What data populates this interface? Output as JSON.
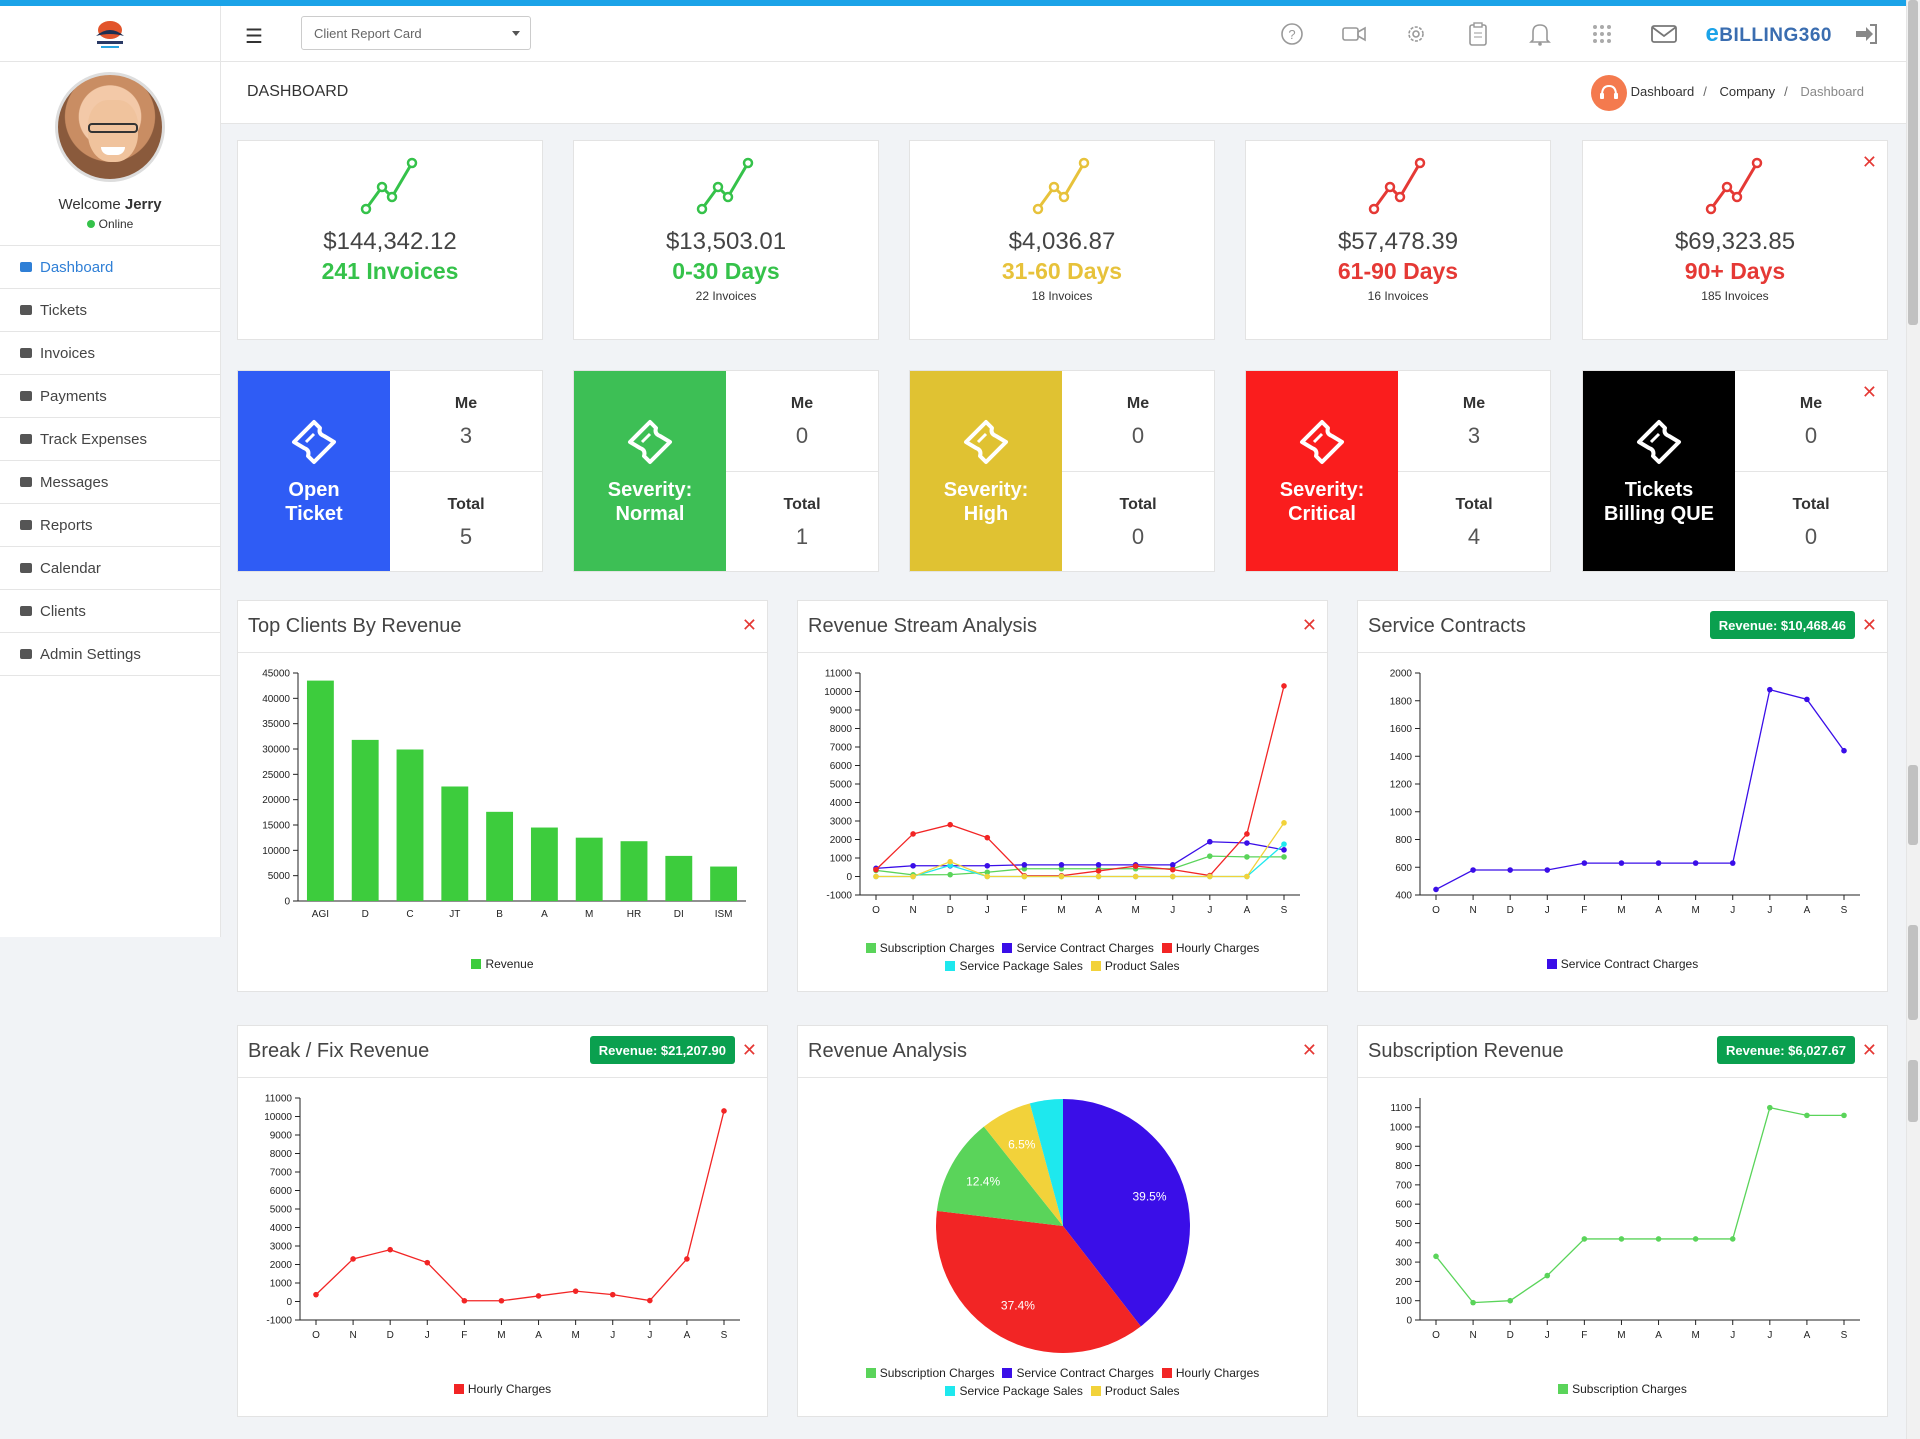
{
  "topbar": {
    "report_select": "Client Report Card",
    "brand_prefix": "e",
    "brand": "BILLING360",
    "icons": [
      "help-icon",
      "video-icon",
      "gear-icon",
      "clipboard-icon",
      "bell-icon",
      "apps-grid-icon",
      "mail-icon",
      "logout-icon"
    ]
  },
  "sidebar": {
    "welcome_prefix": "Welcome",
    "user": "Jerry",
    "status": "Online",
    "items": [
      {
        "label": "Dashboard",
        "icon": "dashboard-icon"
      },
      {
        "label": "Tickets",
        "icon": "ticket-icon"
      },
      {
        "label": "Invoices",
        "icon": "invoice-icon"
      },
      {
        "label": "Payments",
        "icon": "payment-icon"
      },
      {
        "label": "Track Expenses",
        "icon": "money-icon"
      },
      {
        "label": "Messages",
        "icon": "chat-icon"
      },
      {
        "label": "Reports",
        "icon": "book-icon"
      },
      {
        "label": "Calendar",
        "icon": "calendar-icon"
      },
      {
        "label": "Clients",
        "icon": "users-icon"
      },
      {
        "label": "Admin Settings",
        "icon": "cog-icon"
      }
    ]
  },
  "header": {
    "title": "DASHBOARD",
    "breadcrumb": [
      "Dashboard",
      "Company",
      "Dashboard"
    ]
  },
  "stats": [
    {
      "amount": "$144,342.12",
      "label": "241 Invoices",
      "sub": "",
      "color": "#35c24a"
    },
    {
      "amount": "$13,503.01",
      "label": "0-30 Days",
      "sub": "22 Invoices",
      "color": "#35c24a"
    },
    {
      "amount": "$4,036.87",
      "label": "31-60 Days",
      "sub": "18 Invoices",
      "color": "#e7c23b"
    },
    {
      "amount": "$57,478.39",
      "label": "61-90 Days",
      "sub": "16 Invoices",
      "color": "#e53935"
    },
    {
      "amount": "$69,323.85",
      "label": "90+ Days",
      "sub": "185 Invoices",
      "color": "#e53935"
    }
  ],
  "tickets": [
    {
      "label": "Open\nTicket",
      "me_label": "Me",
      "me": "3",
      "total_label": "Total",
      "total": "5",
      "color": "#2f5cf5"
    },
    {
      "label": "Severity:\nNormal",
      "me_label": "Me",
      "me": "0",
      "total_label": "Total",
      "total": "1",
      "color": "#3dbf55"
    },
    {
      "label": "Severity:\nHigh",
      "me_label": "Me",
      "me": "0",
      "total_label": "Total",
      "total": "0",
      "color": "#e0c232"
    },
    {
      "label": "Severity:\nCritical",
      "me_label": "Me",
      "me": "3",
      "total_label": "Total",
      "total": "4",
      "color": "#fa1d1d"
    },
    {
      "label": "Tickets\nBilling QUE",
      "me_label": "Me",
      "me": "0",
      "total_label": "Total",
      "total": "0",
      "color": "#000000"
    }
  ],
  "charts": {
    "top_clients": {
      "title": "Top Clients By Revenue"
    },
    "revenue_stream": {
      "title": "Revenue Stream Analysis"
    },
    "service_contracts": {
      "title": "Service Contracts",
      "badge": "Revenue: $10,468.46"
    },
    "break_fix": {
      "title": "Break / Fix Revenue",
      "badge": "Revenue: $21,207.90"
    },
    "revenue_analysis": {
      "title": "Revenue Analysis"
    },
    "subscription": {
      "title": "Subscription Revenue",
      "badge": "Revenue: $6,027.67"
    }
  },
  "chart_data": [
    {
      "type": "bar",
      "title": "Top Clients By Revenue",
      "categories": [
        "AGI",
        "D",
        "C",
        "JT",
        "B",
        "A",
        "M",
        "HR",
        "DI",
        "ISM"
      ],
      "series": [
        {
          "name": "Revenue",
          "values": [
            43500,
            31800,
            29900,
            22600,
            17600,
            14500,
            12500,
            11800,
            8900,
            6800
          ],
          "color": "#3dcc3d"
        }
      ],
      "ylim": [
        0,
        45000
      ],
      "yticks": [
        0,
        5000,
        10000,
        15000,
        20000,
        25000,
        30000,
        35000,
        40000,
        45000
      ]
    },
    {
      "type": "line",
      "title": "Revenue Stream Analysis",
      "categories": [
        "O",
        "N",
        "D",
        "J",
        "F",
        "M",
        "A",
        "M",
        "J",
        "J",
        "A",
        "S"
      ],
      "ylim": [
        -1000,
        11000
      ],
      "yticks": [
        -1000,
        0,
        1000,
        2000,
        3000,
        4000,
        5000,
        6000,
        7000,
        8000,
        9000,
        10000,
        11000
      ],
      "series": [
        {
          "name": "Subscription Charges",
          "color": "#5ad45a",
          "values": [
            330,
            90,
            100,
            230,
            420,
            420,
            420,
            420,
            420,
            1100,
            1060,
            1060
          ]
        },
        {
          "name": "Service Contract Charges",
          "color": "#3a0ee8",
          "values": [
            440,
            580,
            580,
            580,
            630,
            630,
            630,
            630,
            630,
            1880,
            1810,
            1440
          ]
        },
        {
          "name": "Hourly Charges",
          "color": "#f22525",
          "values": [
            370,
            2300,
            2800,
            2100,
            40,
            40,
            300,
            560,
            370,
            50,
            2300,
            10300
          ]
        },
        {
          "name": "Service Package Sales",
          "color": "#1ee8ee",
          "values": [
            0,
            0,
            600,
            0,
            0,
            0,
            0,
            0,
            0,
            0,
            0,
            1750
          ]
        },
        {
          "name": "Product Sales",
          "color": "#f2d23a",
          "values": [
            0,
            0,
            800,
            0,
            0,
            0,
            0,
            0,
            0,
            0,
            0,
            2900
          ]
        }
      ]
    },
    {
      "type": "line",
      "title": "Service Contracts",
      "categories": [
        "O",
        "N",
        "D",
        "J",
        "F",
        "M",
        "A",
        "M",
        "J",
        "J",
        "A",
        "S"
      ],
      "ylim": [
        400,
        2000
      ],
      "yticks": [
        400,
        600,
        800,
        1000,
        1200,
        1400,
        1600,
        1800,
        2000
      ],
      "series": [
        {
          "name": "Service Contract Charges",
          "color": "#3a0ee8",
          "values": [
            440,
            580,
            580,
            580,
            630,
            630,
            630,
            630,
            630,
            1880,
            1810,
            1440
          ]
        }
      ]
    },
    {
      "type": "line",
      "title": "Break / Fix Revenue",
      "categories": [
        "O",
        "N",
        "D",
        "J",
        "F",
        "M",
        "A",
        "M",
        "J",
        "J",
        "A",
        "S"
      ],
      "ylim": [
        -1000,
        11000
      ],
      "yticks": [
        -1000,
        0,
        1000,
        2000,
        3000,
        4000,
        5000,
        6000,
        7000,
        8000,
        9000,
        10000,
        11000
      ],
      "series": [
        {
          "name": "Hourly Charges",
          "color": "#f22525",
          "values": [
            370,
            2300,
            2800,
            2100,
            40,
            40,
            300,
            560,
            370,
            50,
            2300,
            10300
          ]
        }
      ]
    },
    {
      "type": "pie",
      "title": "Revenue Analysis",
      "slices": [
        {
          "name": "Service Contract Charges",
          "percent": 39.5,
          "label": "39.5%",
          "color": "#3a0ee8"
        },
        {
          "name": "Hourly Charges",
          "percent": 37.4,
          "label": "37.4%",
          "color": "#f22525"
        },
        {
          "name": "Subscription Charges",
          "percent": 12.4,
          "label": "12.4%",
          "color": "#5ad45a"
        },
        {
          "name": "Product Sales",
          "percent": 6.5,
          "label": "6.5%",
          "color": "#f2d23a"
        },
        {
          "name": "Service Package Sales",
          "percent": 4.2,
          "label": "",
          "color": "#1ee8ee"
        }
      ]
    },
    {
      "type": "line",
      "title": "Subscription Revenue",
      "categories": [
        "O",
        "N",
        "D",
        "J",
        "F",
        "M",
        "A",
        "M",
        "J",
        "J",
        "A",
        "S"
      ],
      "ylim": [
        0,
        1150
      ],
      "yticks": [
        0,
        100,
        200,
        300,
        400,
        500,
        600,
        700,
        800,
        900,
        1000,
        1100
      ],
      "series": [
        {
          "name": "Subscription Charges",
          "color": "#5ad45a",
          "values": [
            330,
            90,
            100,
            230,
            420,
            420,
            420,
            420,
            420,
            1100,
            1060,
            1060
          ]
        }
      ]
    }
  ]
}
